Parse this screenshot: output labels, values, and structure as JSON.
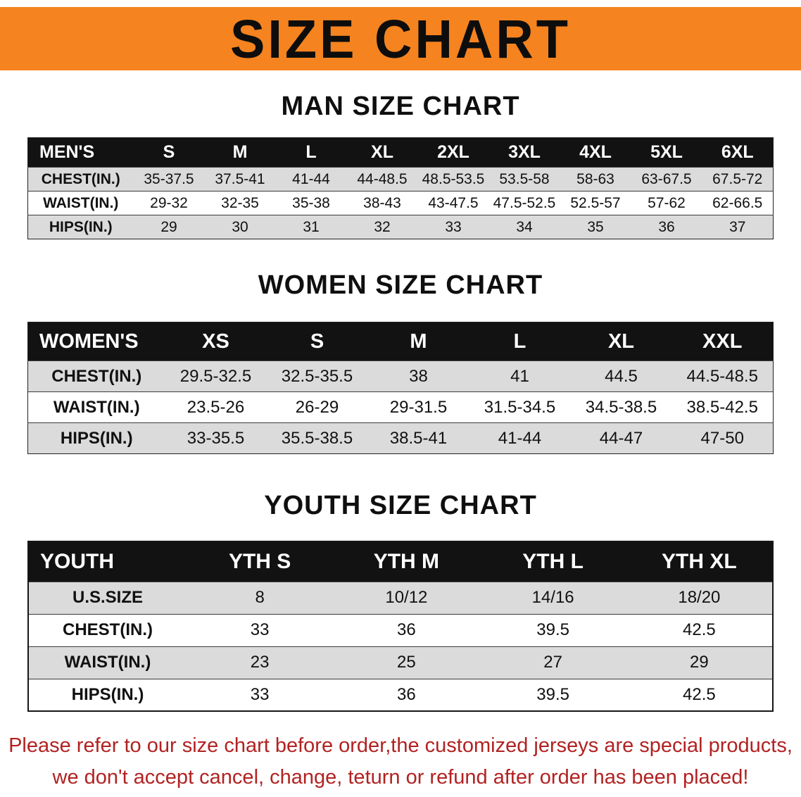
{
  "banner": {
    "title": "SIZE CHART"
  },
  "colors": {
    "banner_bg": "#F5831F",
    "header_bg": "#121212",
    "row_alt": "#DBDBDB",
    "disclaimer_red": "#B22222"
  },
  "sections": [
    {
      "heading": "MAN SIZE CHART",
      "table": {
        "header": [
          "MEN'S",
          "S",
          "M",
          "L",
          "XL",
          "2XL",
          "3XL",
          "4XL",
          "5XL",
          "6XL"
        ],
        "rows": [
          [
            "CHEST(IN.)",
            "35-37.5",
            "37.5-41",
            "41-44",
            "44-48.5",
            "48.5-53.5",
            "53.5-58",
            "58-63",
            "63-67.5",
            "67.5-72"
          ],
          [
            "WAIST(IN.)",
            "29-32",
            "32-35",
            "35-38",
            "38-43",
            "43-47.5",
            "47.5-52.5",
            "52.5-57",
            "57-62",
            "62-66.5"
          ],
          [
            "HIPS(IN.)",
            "29",
            "30",
            "31",
            "32",
            "33",
            "34",
            "35",
            "36",
            "37"
          ]
        ]
      }
    },
    {
      "heading": "WOMEN SIZE CHART",
      "table": {
        "header": [
          "WOMEN'S",
          "XS",
          "S",
          "M",
          "L",
          "XL",
          "XXL"
        ],
        "rows": [
          [
            "CHEST(IN.)",
            "29.5-32.5",
            "32.5-35.5",
            "38",
            "41",
            "44.5",
            "44.5-48.5"
          ],
          [
            "WAIST(IN.)",
            "23.5-26",
            "26-29",
            "29-31.5",
            "31.5-34.5",
            "34.5-38.5",
            "38.5-42.5"
          ],
          [
            "HIPS(IN.)",
            "33-35.5",
            "35.5-38.5",
            "38.5-41",
            "41-44",
            "44-47",
            "47-50"
          ]
        ]
      }
    },
    {
      "heading": "YOUTH SIZE CHART",
      "table": {
        "header": [
          "YOUTH",
          "YTH S",
          "YTH M",
          "YTH L",
          "YTH XL"
        ],
        "rows": [
          [
            "U.S.SIZE",
            "8",
            "10/12",
            "14/16",
            "18/20"
          ],
          [
            "CHEST(IN.)",
            "33",
            "36",
            "39.5",
            "42.5"
          ],
          [
            "WAIST(IN.)",
            "23",
            "25",
            "27",
            "29"
          ],
          [
            "HIPS(IN.)",
            "33",
            "36",
            "39.5",
            "42.5"
          ]
        ]
      }
    }
  ],
  "disclaimer": {
    "line1": "Please refer to our size chart before order,the customized jerseys are special products,",
    "line2": "we don't accept cancel, change, teturn or refund after order has been placed!"
  }
}
